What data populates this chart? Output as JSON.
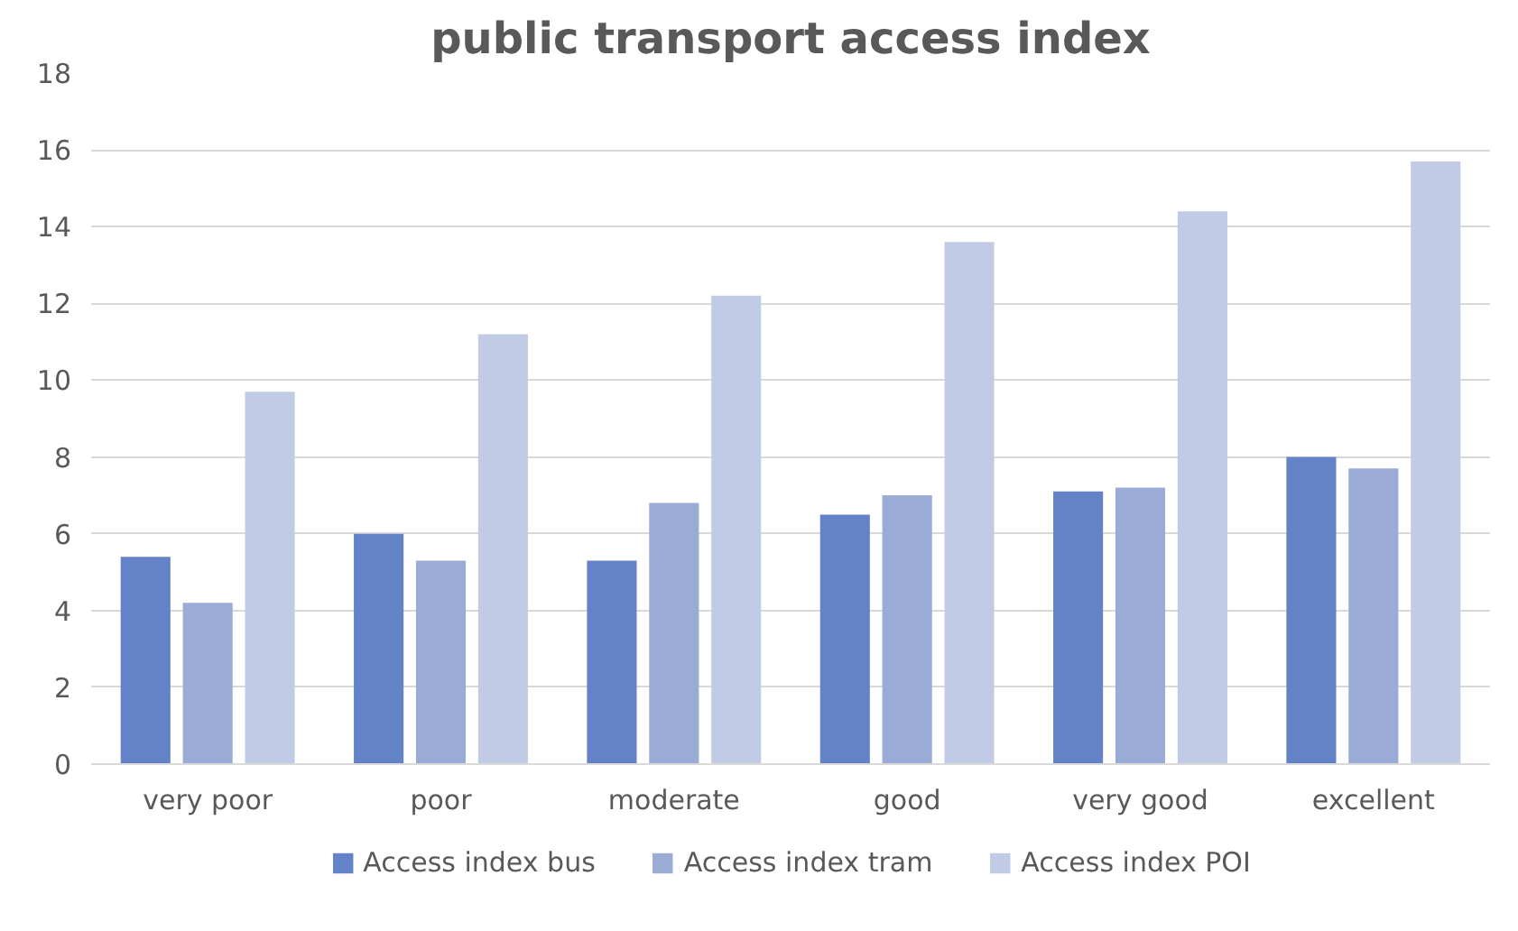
{
  "chart_data": {
    "type": "bar",
    "title": "public transport access index",
    "categories": [
      "very poor",
      "poor",
      "moderate",
      "good",
      "very good",
      "excellent"
    ],
    "series": [
      {
        "name": "Access index bus",
        "color": "#6382c8",
        "values": [
          5.4,
          6.0,
          5.3,
          6.5,
          7.1,
          8.0
        ]
      },
      {
        "name": "Access index tram",
        "color": "#9aabd6",
        "values": [
          4.2,
          5.3,
          6.8,
          7.0,
          7.2,
          7.7
        ]
      },
      {
        "name": "Access index POI",
        "color": "#c2cbe6",
        "values": [
          9.7,
          11.2,
          12.2,
          13.6,
          14.4,
          15.7
        ]
      }
    ],
    "ylim": [
      0,
      18
    ],
    "yticks": [
      0,
      2,
      4,
      6,
      8,
      10,
      12,
      14,
      16,
      18
    ],
    "grid": "y",
    "legend": "bottom"
  }
}
